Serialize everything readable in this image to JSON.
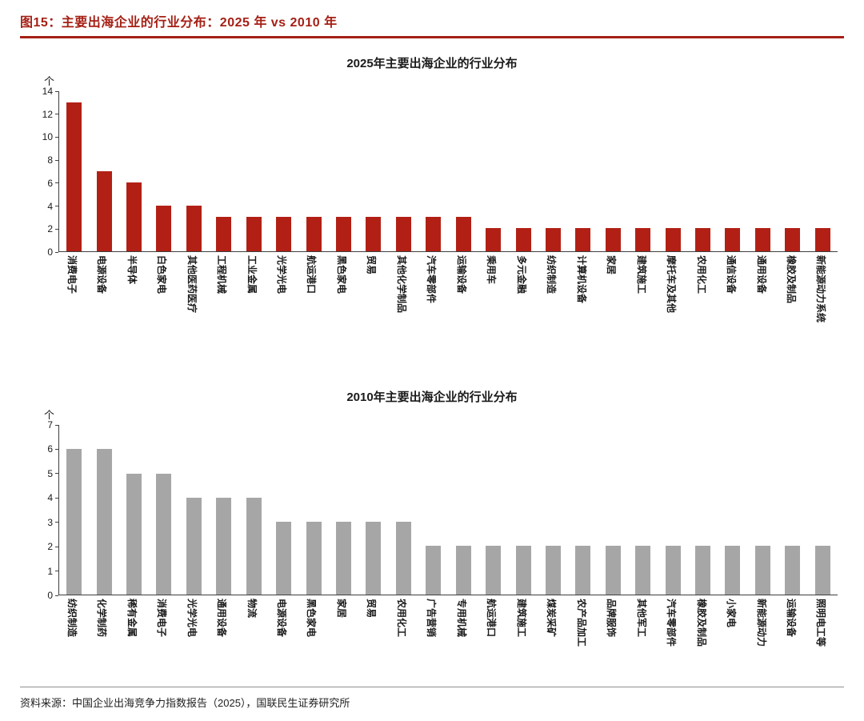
{
  "page": {
    "figure_title": "图15：主要出海企业的行业分布：2025 年 vs 2010 年",
    "source": "资料来源：中国企业出海竞争力指数报告（2025），国联民生证券研究所"
  },
  "colors": {
    "accent_red": "#A52015",
    "bar_red": "#B22015",
    "bar_gray": "#A6A6A6",
    "axis": "#3f3f3f"
  },
  "chart_data": [
    {
      "type": "bar",
      "title": "2025年主要出海企业的行业分布",
      "ylabel": "个",
      "xlabel": "",
      "ylim": [
        0,
        14
      ],
      "yticks": [
        0,
        2,
        4,
        6,
        8,
        10,
        12,
        14
      ],
      "grid": false,
      "legend": "none",
      "bar_color": "#B22015",
      "categories": [
        "消费电子",
        "电源设备",
        "半导体",
        "白色家电",
        "其他医药医疗",
        "工程机械",
        "工业金属",
        "光学光电",
        "航运港口",
        "黑色家电",
        "贸易",
        "其他化学制品",
        "汽车零部件",
        "运输设备",
        "乘用车",
        "多元金融",
        "纺织制造",
        "计算机设备",
        "家居",
        "建筑施工",
        "摩托车及其他",
        "农用化工",
        "通信设备",
        "通用设备",
        "橡胶及制品",
        "新能源动力系统"
      ],
      "values": [
        13,
        7,
        6,
        4,
        4,
        3,
        3,
        3,
        3,
        3,
        3,
        3,
        3,
        3,
        2,
        2,
        2,
        2,
        2,
        2,
        2,
        2,
        2,
        2,
        2,
        2
      ]
    },
    {
      "type": "bar",
      "title": "2010年主要出海企业的行业分布",
      "ylabel": "个",
      "xlabel": "",
      "ylim": [
        0,
        7
      ],
      "yticks": [
        0,
        1,
        2,
        3,
        4,
        5,
        6,
        7
      ],
      "grid": false,
      "legend": "none",
      "bar_color": "#A6A6A6",
      "categories": [
        "纺织制造",
        "化学制药",
        "稀有金属",
        "消费电子",
        "光学光电",
        "通用设备",
        "物流",
        "电源设备",
        "黑色家电",
        "家居",
        "贸易",
        "农用化工",
        "广告营销",
        "专用机械",
        "航运港口",
        "建筑施工",
        "煤炭采矿",
        "农产品加工",
        "品牌服饰",
        "其他军工",
        "汽车零部件",
        "橡胶及制品",
        "小家电",
        "新能源动力",
        "运输设备",
        "照明电工等"
      ],
      "values": [
        6,
        6,
        5,
        5,
        4,
        4,
        4,
        3,
        3,
        3,
        3,
        3,
        2,
        2,
        2,
        2,
        2,
        2,
        2,
        2,
        2,
        2,
        2,
        2,
        2,
        2
      ]
    }
  ]
}
